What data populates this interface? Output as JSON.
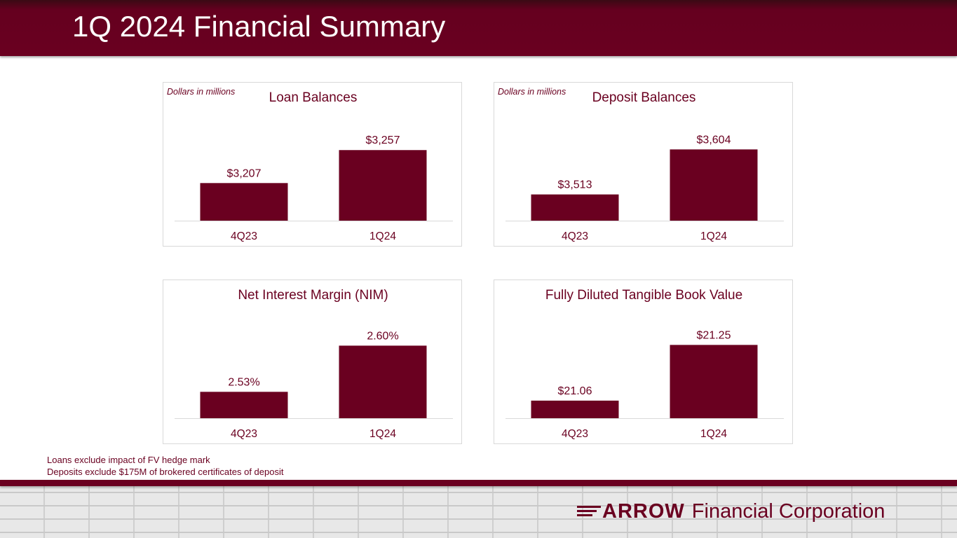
{
  "header": {
    "title": "1Q 2024 Financial Summary"
  },
  "panels": {
    "loan": {
      "unit_note": "Dollars in millions"
    },
    "deposit": {
      "unit_note": "Dollars in millions"
    },
    "nim": {
      "unit_note": ""
    },
    "tbv": {
      "unit_note": ""
    }
  },
  "footnotes": {
    "line1": "Loans exclude impact of FV hedge mark",
    "line2": "Deposits exclude $175M of brokered certificates of deposit"
  },
  "logo": {
    "brand": "RROW",
    "mark_letter": "A",
    "subtitle": "Financial Corporation"
  },
  "colors": {
    "bar": "#6a0020",
    "axis": "#d9d9d9",
    "text": "#6a0020",
    "header": "#6a0020"
  },
  "chart_data": [
    {
      "id": "loan",
      "type": "bar",
      "title": "Loan Balances",
      "categories": [
        "4Q23",
        "1Q24"
      ],
      "values": [
        3207,
        3257
      ],
      "labels": [
        "$3,207",
        "$3,257"
      ],
      "ylim": [
        3150,
        3270
      ],
      "grid": false
    },
    {
      "id": "deposit",
      "type": "bar",
      "title": "Deposit Balances",
      "categories": [
        "4Q23",
        "1Q24"
      ],
      "values": [
        3513,
        3604
      ],
      "labels": [
        "$3,513",
        "$3,604"
      ],
      "ylim": [
        3460,
        3620
      ],
      "grid": false
    },
    {
      "id": "nim",
      "type": "bar",
      "title": "Net Interest Margin (NIM)",
      "categories": [
        "4Q23",
        "1Q24"
      ],
      "values": [
        2.53,
        2.6
      ],
      "labels": [
        "2.53%",
        "2.60%"
      ],
      "ylim": [
        2.49,
        2.61
      ],
      "grid": false
    },
    {
      "id": "tbv",
      "type": "bar",
      "title": "Fully Diluted Tangible Book Value",
      "categories": [
        "4Q23",
        "1Q24"
      ],
      "values": [
        21.06,
        21.25
      ],
      "labels": [
        "$21.06",
        "$21.25"
      ],
      "ylim": [
        21.0,
        21.27
      ],
      "grid": false
    }
  ]
}
